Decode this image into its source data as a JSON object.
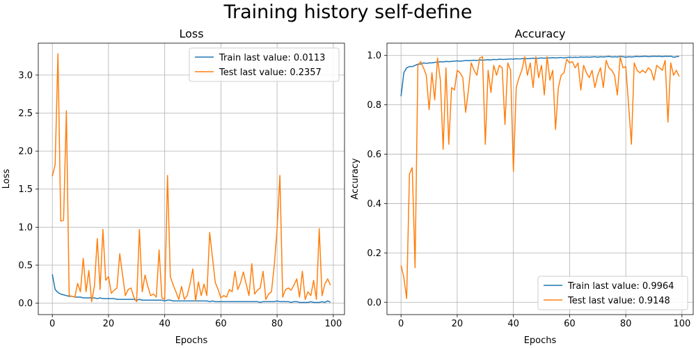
{
  "figure": {
    "title": "Training history self-define"
  },
  "colors": {
    "train": "#1f77b4",
    "test": "#ff7f0e",
    "grid": "#b0b0b0",
    "axis": "#000000"
  },
  "chart_data": [
    {
      "type": "line",
      "title": "Loss",
      "xlabel": "Epochs",
      "ylabel": "Loss",
      "xlim": [
        -5,
        104
      ],
      "ylim": [
        -0.15,
        3.42
      ],
      "xticks": [
        0,
        20,
        40,
        60,
        80,
        100
      ],
      "xtick_labels": [
        "0",
        "20",
        "40",
        "60",
        "80",
        "100"
      ],
      "yticks": [
        0.0,
        0.5,
        1.0,
        1.5,
        2.0,
        2.5,
        3.0
      ],
      "ytick_labels": [
        "0.0",
        "0.5",
        "1.0",
        "1.5",
        "2.0",
        "2.5",
        "3.0"
      ],
      "grid": true,
      "legend_position": "upper right",
      "series": [
        {
          "name": "Train last value: 0.0113",
          "color": "#1f77b4",
          "x": [
            0,
            1,
            2,
            3,
            4,
            5,
            6,
            7,
            8,
            9,
            10,
            11,
            12,
            13,
            14,
            15,
            16,
            17,
            18,
            19,
            20,
            21,
            22,
            23,
            24,
            25,
            26,
            27,
            28,
            29,
            30,
            31,
            32,
            33,
            34,
            35,
            36,
            37,
            38,
            39,
            40,
            41,
            42,
            43,
            44,
            45,
            46,
            47,
            48,
            49,
            50,
            51,
            52,
            53,
            54,
            55,
            56,
            57,
            58,
            59,
            60,
            61,
            62,
            63,
            64,
            65,
            66,
            67,
            68,
            69,
            70,
            71,
            72,
            73,
            74,
            75,
            76,
            77,
            78,
            79,
            80,
            81,
            82,
            83,
            84,
            85,
            86,
            87,
            88,
            89,
            90,
            91,
            92,
            93,
            94,
            95,
            96,
            97,
            98,
            99
          ],
          "y": [
            0.38,
            0.18,
            0.14,
            0.12,
            0.11,
            0.1,
            0.09,
            0.09,
            0.08,
            0.08,
            0.08,
            0.07,
            0.07,
            0.07,
            0.07,
            0.07,
            0.06,
            0.07,
            0.06,
            0.06,
            0.06,
            0.06,
            0.06,
            0.05,
            0.05,
            0.05,
            0.05,
            0.05,
            0.05,
            0.05,
            0.04,
            0.05,
            0.04,
            0.04,
            0.04,
            0.04,
            0.04,
            0.04,
            0.04,
            0.04,
            0.03,
            0.04,
            0.04,
            0.03,
            0.03,
            0.03,
            0.03,
            0.03,
            0.03,
            0.03,
            0.03,
            0.03,
            0.03,
            0.03,
            0.03,
            0.03,
            0.02,
            0.03,
            0.02,
            0.02,
            0.02,
            0.02,
            0.02,
            0.02,
            0.02,
            0.02,
            0.02,
            0.02,
            0.02,
            0.02,
            0.02,
            0.02,
            0.02,
            0.02,
            0.01,
            0.02,
            0.02,
            0.02,
            0.02,
            0.02,
            0.03,
            0.02,
            0.02,
            0.02,
            0.02,
            0.01,
            0.02,
            0.02,
            0.01,
            0.01,
            0.01,
            0.01,
            0.02,
            0.01,
            0.01,
            0.01,
            0.02,
            0.01,
            0.03,
            0.0113
          ]
        },
        {
          "name": "Test last value: 0.2357",
          "color": "#ff7f0e",
          "x": [
            0,
            1,
            2,
            3,
            4,
            5,
            6,
            7,
            8,
            9,
            10,
            11,
            12,
            13,
            14,
            15,
            16,
            17,
            18,
            19,
            20,
            21,
            22,
            23,
            24,
            25,
            26,
            27,
            28,
            29,
            30,
            31,
            32,
            33,
            34,
            35,
            36,
            37,
            38,
            39,
            40,
            41,
            42,
            43,
            44,
            45,
            46,
            47,
            48,
            49,
            50,
            51,
            52,
            53,
            54,
            55,
            56,
            57,
            58,
            59,
            60,
            61,
            62,
            63,
            64,
            65,
            66,
            67,
            68,
            69,
            70,
            71,
            72,
            73,
            74,
            75,
            76,
            77,
            78,
            79,
            80,
            81,
            82,
            83,
            84,
            85,
            86,
            87,
            88,
            89,
            90,
            91,
            92,
            93,
            94,
            95,
            96,
            97,
            98,
            99
          ],
          "y": [
            1.67,
            1.82,
            3.28,
            1.08,
            1.09,
            2.53,
            0.1,
            0.09,
            0.08,
            0.26,
            0.15,
            0.59,
            0.15,
            0.43,
            0.02,
            0.23,
            0.85,
            0.18,
            0.97,
            0.3,
            0.35,
            0.13,
            0.17,
            0.2,
            0.65,
            0.37,
            0.1,
            0.18,
            0.2,
            0.08,
            0.02,
            0.97,
            0.15,
            0.37,
            0.22,
            0.1,
            0.12,
            0.08,
            0.7,
            0.07,
            0.05,
            1.68,
            0.35,
            0.24,
            0.15,
            0.05,
            0.22,
            0.05,
            0.1,
            0.25,
            0.45,
            0.03,
            0.28,
            0.1,
            0.25,
            0.1,
            0.93,
            0.6,
            0.27,
            0.18,
            0.07,
            0.1,
            0.08,
            0.18,
            0.15,
            0.42,
            0.18,
            0.27,
            0.41,
            0.25,
            0.1,
            0.52,
            0.12,
            0.17,
            0.2,
            0.42,
            0.05,
            0.12,
            0.15,
            0.5,
            0.98,
            1.68,
            0.08,
            0.18,
            0.2,
            0.17,
            0.24,
            0.32,
            0.08,
            0.42,
            0.05,
            0.15,
            0.1,
            0.3,
            0.05,
            0.98,
            0.1,
            0.25,
            0.32,
            0.2357
          ]
        }
      ]
    },
    {
      "type": "line",
      "title": "Accuracy",
      "xlabel": "Epochs",
      "ylabel": "Accuracy",
      "xlim": [
        -5,
        104
      ],
      "ylim": [
        -0.05,
        1.05
      ],
      "xticks": [
        0,
        20,
        40,
        60,
        80,
        100
      ],
      "xtick_labels": [
        "0",
        "20",
        "40",
        "60",
        "80",
        "100"
      ],
      "yticks": [
        0.0,
        0.2,
        0.4,
        0.6,
        0.8,
        1.0
      ],
      "ytick_labels": [
        "0.0",
        "0.2",
        "0.4",
        "0.6",
        "0.8",
        "1.0"
      ],
      "grid": true,
      "legend_position": "lower right",
      "series": [
        {
          "name": "Train last value: 0.9964",
          "color": "#1f77b4",
          "x": [
            0,
            1,
            2,
            3,
            4,
            5,
            6,
            7,
            8,
            9,
            10,
            11,
            12,
            13,
            14,
            15,
            16,
            17,
            18,
            19,
            20,
            21,
            22,
            23,
            24,
            25,
            26,
            27,
            28,
            29,
            30,
            31,
            32,
            33,
            34,
            35,
            36,
            37,
            38,
            39,
            40,
            41,
            42,
            43,
            44,
            45,
            46,
            47,
            48,
            49,
            50,
            51,
            52,
            53,
            54,
            55,
            56,
            57,
            58,
            59,
            60,
            61,
            62,
            63,
            64,
            65,
            66,
            67,
            68,
            69,
            70,
            71,
            72,
            73,
            74,
            75,
            76,
            77,
            78,
            79,
            80,
            81,
            82,
            83,
            84,
            85,
            86,
            87,
            88,
            89,
            90,
            91,
            92,
            93,
            94,
            95,
            96,
            97,
            98,
            99
          ],
          "y": [
            0.835,
            0.93,
            0.95,
            0.955,
            0.955,
            0.96,
            0.965,
            0.965,
            0.97,
            0.968,
            0.97,
            0.97,
            0.972,
            0.973,
            0.975,
            0.974,
            0.976,
            0.975,
            0.976,
            0.977,
            0.978,
            0.977,
            0.978,
            0.98,
            0.979,
            0.98,
            0.981,
            0.98,
            0.982,
            0.981,
            0.982,
            0.983,
            0.982,
            0.984,
            0.983,
            0.985,
            0.984,
            0.984,
            0.985,
            0.986,
            0.985,
            0.987,
            0.986,
            0.987,
            0.988,
            0.987,
            0.988,
            0.989,
            0.988,
            0.989,
            0.99,
            0.989,
            0.99,
            0.99,
            0.991,
            0.99,
            0.991,
            0.992,
            0.99,
            0.992,
            0.993,
            0.992,
            0.993,
            0.992,
            0.994,
            0.993,
            0.994,
            0.993,
            0.994,
            0.995,
            0.993,
            0.995,
            0.994,
            0.995,
            0.996,
            0.994,
            0.995,
            0.994,
            0.996,
            0.995,
            0.993,
            0.995,
            0.994,
            0.995,
            0.996,
            0.995,
            0.996,
            0.997,
            0.995,
            0.996,
            0.997,
            0.996,
            0.997,
            0.995,
            0.997,
            0.996,
            0.997,
            0.993,
            0.995,
            0.9964
          ]
        },
        {
          "name": "Test last value: 0.9148",
          "color": "#ff7f0e",
          "x": [
            0,
            1,
            2,
            3,
            4,
            5,
            6,
            7,
            8,
            9,
            10,
            11,
            12,
            13,
            14,
            15,
            16,
            17,
            18,
            19,
            20,
            21,
            22,
            23,
            24,
            25,
            26,
            27,
            28,
            29,
            30,
            31,
            32,
            33,
            34,
            35,
            36,
            37,
            38,
            39,
            40,
            41,
            42,
            43,
            44,
            45,
            46,
            47,
            48,
            49,
            50,
            51,
            52,
            53,
            54,
            55,
            56,
            57,
            58,
            59,
            60,
            61,
            62,
            63,
            64,
            65,
            66,
            67,
            68,
            69,
            70,
            71,
            72,
            73,
            74,
            75,
            76,
            77,
            78,
            79,
            80,
            81,
            82,
            83,
            84,
            85,
            86,
            87,
            88,
            89,
            90,
            91,
            92,
            93,
            94,
            95,
            96,
            97,
            98,
            99
          ],
          "y": [
            0.15,
            0.1,
            0.015,
            0.52,
            0.545,
            0.14,
            0.96,
            0.975,
            0.95,
            0.92,
            0.78,
            0.93,
            0.82,
            0.99,
            0.9,
            0.62,
            0.95,
            0.64,
            0.87,
            0.86,
            0.94,
            0.93,
            0.91,
            0.77,
            0.86,
            0.97,
            0.94,
            0.92,
            0.99,
            0.995,
            0.64,
            0.94,
            0.85,
            0.96,
            0.92,
            0.96,
            0.95,
            0.72,
            0.97,
            0.94,
            0.53,
            0.87,
            0.91,
            0.94,
            0.995,
            0.92,
            0.97,
            0.87,
            0.995,
            0.91,
            0.96,
            0.84,
            0.995,
            0.9,
            0.94,
            0.7,
            0.87,
            0.92,
            0.93,
            0.985,
            0.97,
            0.975,
            0.95,
            0.97,
            0.86,
            0.96,
            0.93,
            0.91,
            0.94,
            0.87,
            0.92,
            0.95,
            0.87,
            0.98,
            0.95,
            0.94,
            0.92,
            0.84,
            0.995,
            0.95,
            0.955,
            0.8,
            0.64,
            0.97,
            0.94,
            0.93,
            0.94,
            0.93,
            0.95,
            0.94,
            0.9,
            0.96,
            0.95,
            0.94,
            0.98,
            0.73,
            0.97,
            0.92,
            0.94,
            0.9148
          ]
        }
      ]
    }
  ]
}
